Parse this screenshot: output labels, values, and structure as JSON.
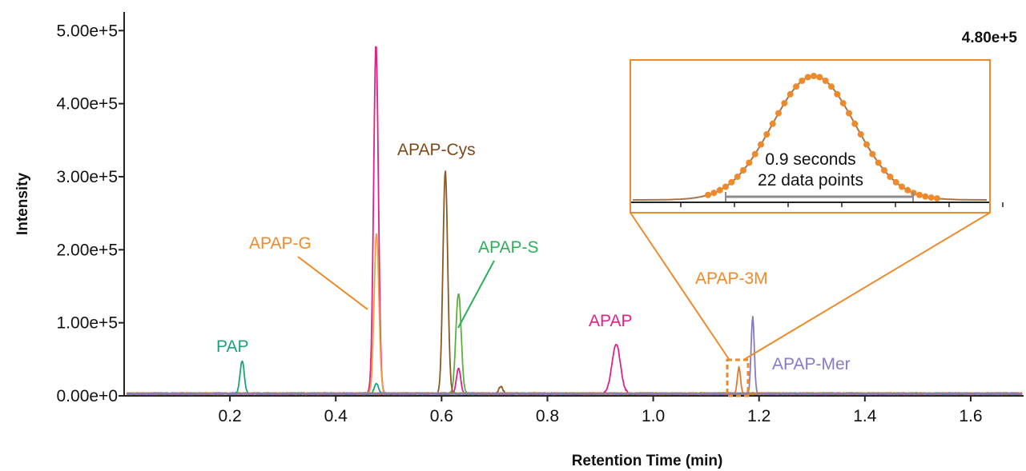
{
  "chart_data": {
    "type": "line",
    "xlabel": "Retention Time (min)",
    "ylabel": "Intensity",
    "max_intensity_label": "4.80e+5",
    "xlim": [
      0.0,
      1.7
    ],
    "ylim": [
      0,
      520000
    ],
    "x_ticks": [
      {
        "value": 0.2,
        "label": "0.2"
      },
      {
        "value": 0.4,
        "label": "0.4"
      },
      {
        "value": 0.6,
        "label": "0.6"
      },
      {
        "value": 0.8,
        "label": "0.8"
      },
      {
        "value": 1.0,
        "label": "1.0"
      },
      {
        "value": 1.2,
        "label": "1.2"
      },
      {
        "value": 1.4,
        "label": "1.4"
      },
      {
        "value": 1.6,
        "label": "1.6"
      }
    ],
    "y_ticks": [
      {
        "value": 0,
        "label": "0.00e+0"
      },
      {
        "value": 100000,
        "label": "1.00e+5"
      },
      {
        "value": 200000,
        "label": "2.00e+5"
      },
      {
        "value": 300000,
        "label": "3.00e+5"
      },
      {
        "value": 400000,
        "label": "4.00e+5"
      },
      {
        "value": 500000,
        "label": "5.00e+5"
      }
    ],
    "baseline": 3000,
    "series": [
      {
        "name": "PAP",
        "color": "#1aa37a",
        "peaks": [
          {
            "rt": 0.223,
            "height": 45000,
            "width": 0.004
          },
          {
            "rt": 0.477,
            "height": 14000,
            "width": 0.004
          }
        ]
      },
      {
        "name": "APAP-G",
        "color": "#f0a03c",
        "peaks": [
          {
            "rt": 0.477,
            "height": 220000,
            "width": 0.0045
          }
        ]
      },
      {
        "name": "APAP",
        "color": "#e0218a",
        "peaks": [
          {
            "rt": 0.476,
            "height": 480000,
            "width": 0.0045
          },
          {
            "rt": 0.632,
            "height": 35000,
            "width": 0.004
          },
          {
            "rt": 0.93,
            "height": 68000,
            "width": 0.008
          }
        ]
      },
      {
        "name": "APAP-Cys",
        "color": "#8a5a24",
        "peaks": [
          {
            "rt": 0.607,
            "height": 305000,
            "width": 0.0045
          },
          {
            "rt": 0.712,
            "height": 9000,
            "width": 0.004
          }
        ]
      },
      {
        "name": "APAP-S",
        "color": "#5cb040",
        "peaks": [
          {
            "rt": 0.632,
            "height": 138000,
            "width": 0.005
          }
        ]
      },
      {
        "name": "APAP-3M",
        "color": "#e07a28",
        "peaks": [
          {
            "rt": 1.162,
            "height": 36000,
            "width": 0.003
          }
        ]
      },
      {
        "name": "APAP-Mer",
        "color": "#8a7ac0",
        "peaks": [
          {
            "rt": 1.188,
            "height": 105000,
            "width": 0.003
          }
        ]
      }
    ],
    "annotations": [
      {
        "text": "PAP",
        "color": "#1aa37a"
      },
      {
        "text": "APAP-G",
        "color": "#ee8a2a"
      },
      {
        "text": "APAP-Cys",
        "color": "#7a4a1c"
      },
      {
        "text": "APAP-S",
        "color": "#2ab05a"
      },
      {
        "text": "APAP",
        "color": "#e0218a"
      },
      {
        "text": "APAP-3M",
        "color": "#ee8a2a"
      },
      {
        "text": "APAP-Mer",
        "color": "#8a7ac0"
      }
    ],
    "inset": {
      "line1": "0.9 seconds",
      "line2": "22 data points",
      "border_color": "#ee8a2a",
      "point_color": "#ee8a2a",
      "line_color": "#a8744a",
      "span_color": "#8c8c8c",
      "zoom_region_rt": [
        1.155,
        1.18
      ]
    }
  }
}
